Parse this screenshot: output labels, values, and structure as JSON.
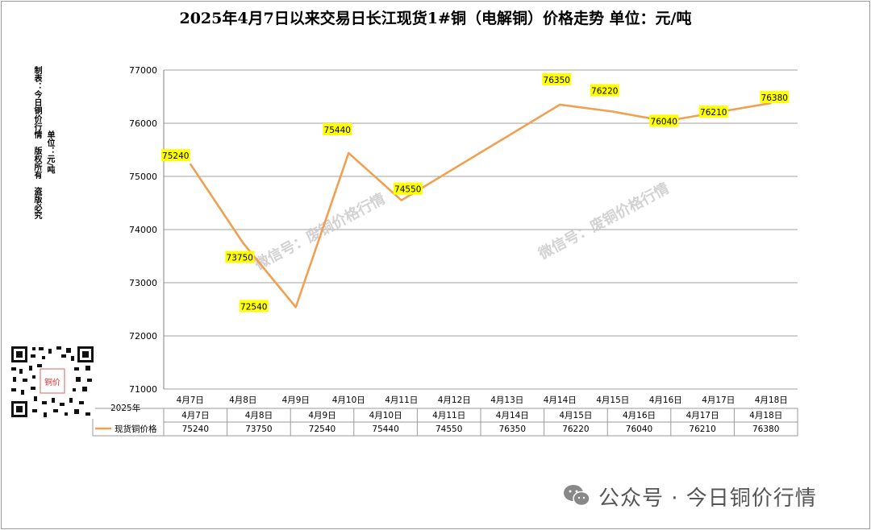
{
  "title": "2025年4月7日以来交易日长江现货1#铜（电解铜）价格走势 单位：元/吨",
  "side_text_1": "制表：今日铜价行情　版权所有　盗版必究",
  "side_text_2": "单位：元/吨",
  "qr_label": "铜价",
  "footer": "公众号 · 今日铜价行情",
  "watermark_1": "微信号：废铜价格行情",
  "watermark_2": "微信号：废铜价格行情",
  "colors": {
    "line": "#f0a050",
    "label_bg": "#ffff00",
    "grid": "#a0a0a0"
  },
  "chart_data": {
    "type": "line",
    "title": "2025年4月7日以来交易日长江现货1#铜（电解铜）价格走势 单位：元/吨",
    "categories": [
      "4月7日",
      "4月8日",
      "4月9日",
      "4月10日",
      "4月11日",
      "4月12日",
      "4月13日",
      "4月14日",
      "4月15日",
      "4月16日",
      "4月17日",
      "4月18日"
    ],
    "series": [
      {
        "name": "现货铜价格",
        "points": [
          {
            "x": "4月7日",
            "y": 75240
          },
          {
            "x": "4月8日",
            "y": 73750
          },
          {
            "x": "4月9日",
            "y": 72540
          },
          {
            "x": "4月10日",
            "y": 75440
          },
          {
            "x": "4月11日",
            "y": 74550
          },
          {
            "x": "4月14日",
            "y": 76350
          },
          {
            "x": "4月15日",
            "y": 76220
          },
          {
            "x": "4月16日",
            "y": 76040
          },
          {
            "x": "4月17日",
            "y": 76210
          },
          {
            "x": "4月18日",
            "y": 76380
          }
        ]
      }
    ],
    "ylim": [
      71000,
      77000
    ],
    "yticks": [
      71000,
      72000,
      73000,
      74000,
      75000,
      76000,
      77000
    ],
    "grid": true,
    "table": {
      "year_label": "2025年",
      "dates": [
        "4月7日",
        "4月8日",
        "4月9日",
        "4月10日",
        "4月11日",
        "4月14日",
        "4月15日",
        "4月16日",
        "4月17日",
        "4月18日"
      ],
      "row_label": "现货铜价格",
      "values": [
        "75240",
        "73750",
        "72540",
        "75440",
        "74550",
        "76350",
        "76220",
        "76040",
        "76210",
        "76380"
      ]
    }
  }
}
